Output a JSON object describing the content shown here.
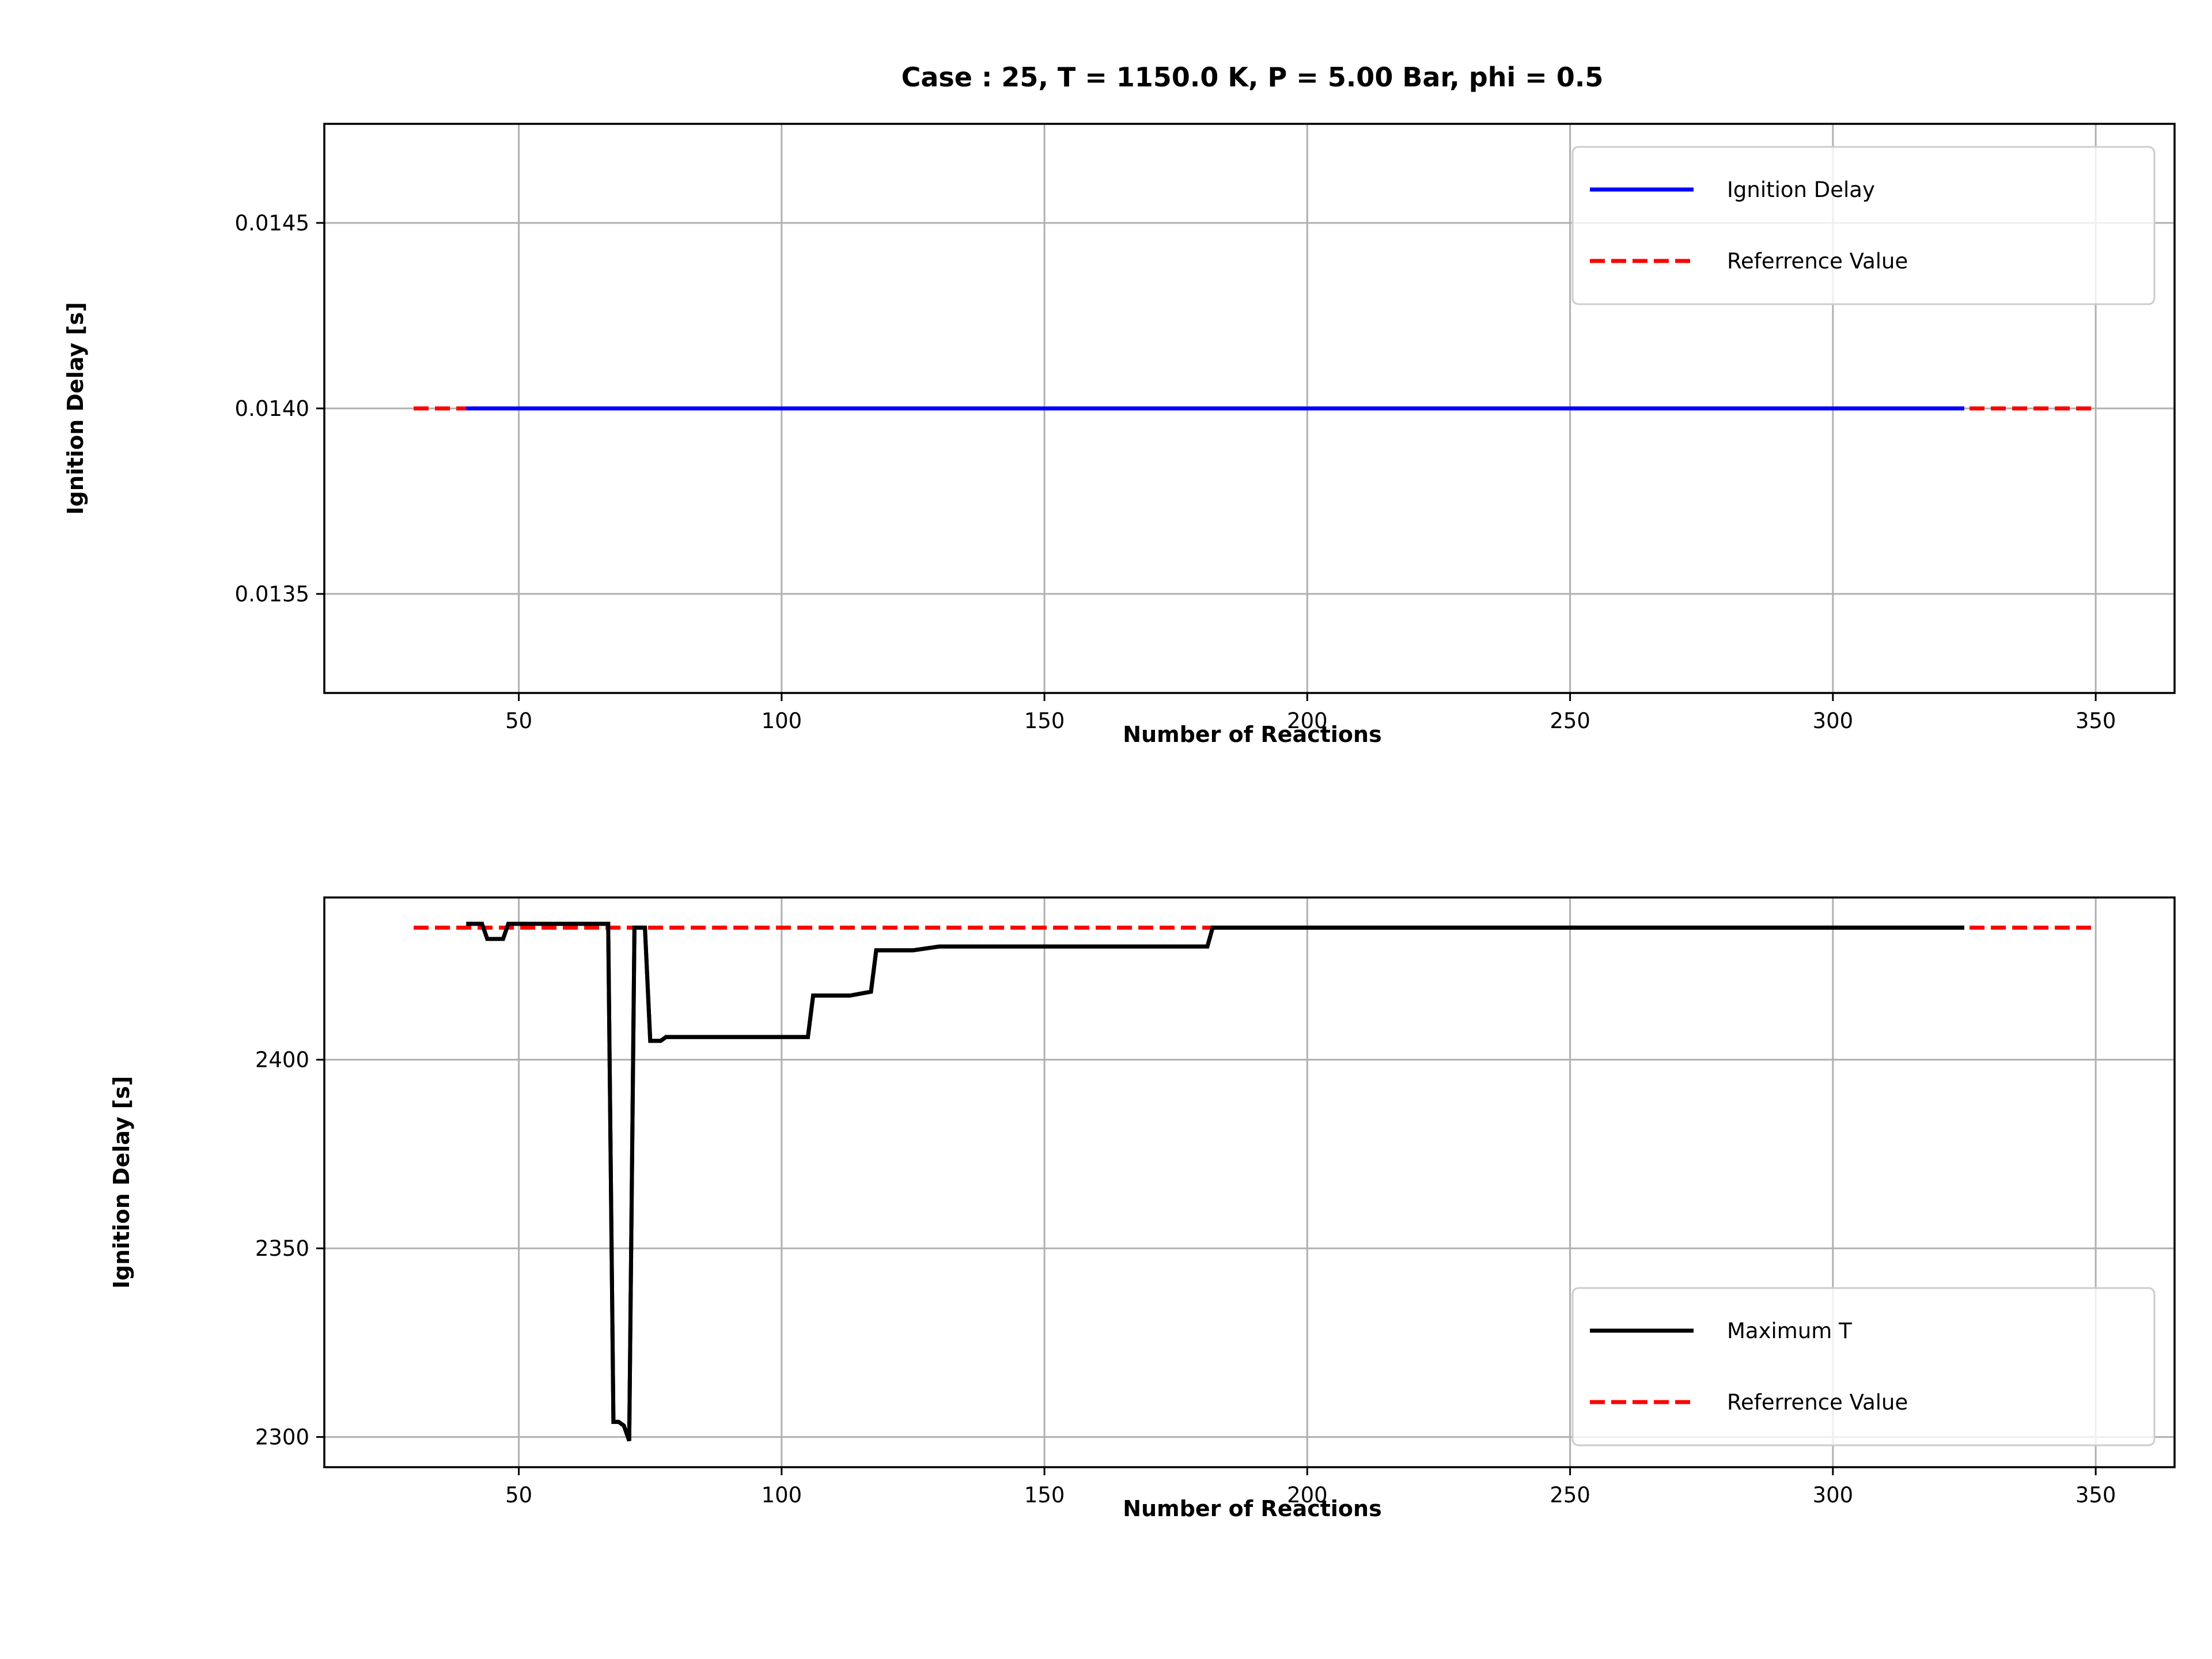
{
  "chart_data": [
    {
      "type": "line",
      "title": "Case : 25, T = 1150.0 K, P = 5.00 Bar, phi = 0.5",
      "xlabel": "Number of Reactions",
      "ylabel": "Ignition Delay [s]",
      "xlim": [
        13,
        365
      ],
      "ylim": [
        0.013233,
        0.014767
      ],
      "xticks": [
        50,
        100,
        150,
        200,
        250,
        300,
        350
      ],
      "yticks": [
        0.0135,
        0.014,
        0.0145
      ],
      "ytick_labels": [
        "0.0135",
        "0.0140",
        "0.0145"
      ],
      "grid": true,
      "legend_position": "upper right",
      "series": [
        {
          "name": "Ignition Delay",
          "color": "#0000ff",
          "style": "solid",
          "x": [
            40,
            325
          ],
          "y": [
            0.014,
            0.014
          ]
        },
        {
          "name": "Referrence Value",
          "color": "#ff0000",
          "style": "dashed",
          "x": [
            30,
            350
          ],
          "y": [
            0.014,
            0.014
          ]
        }
      ]
    },
    {
      "type": "line",
      "title": "",
      "xlabel": "Number of Reactions",
      "ylabel": "Ignition Delay [s]",
      "xlim": [
        13,
        365
      ],
      "ylim": [
        2292,
        2443
      ],
      "xticks": [
        50,
        100,
        150,
        200,
        250,
        300,
        350
      ],
      "yticks": [
        2300,
        2350,
        2400
      ],
      "ytick_labels": [
        "2300",
        "2350",
        "2400"
      ],
      "grid": true,
      "legend_position": "lower right",
      "series": [
        {
          "name": "Maximum T",
          "color": "#000000",
          "style": "solid",
          "x": [
            40,
            43,
            44,
            47,
            48,
            50,
            60,
            67,
            68,
            69,
            70,
            71,
            72,
            73,
            74,
            75,
            76,
            77,
            78,
            80,
            90,
            100,
            105,
            106,
            110,
            113,
            117,
            118,
            125,
            130,
            150,
            170,
            181,
            182,
            190,
            200,
            250,
            300,
            325
          ],
          "y": [
            2436,
            2436,
            2432,
            2432,
            2436,
            2436,
            2436,
            2436,
            2304,
            2304,
            2303,
            2299,
            2435,
            2435,
            2435,
            2405,
            2405,
            2405,
            2406,
            2406,
            2406,
            2406,
            2406,
            2417,
            2417,
            2417,
            2418,
            2429,
            2429,
            2430,
            2430,
            2430,
            2430,
            2435,
            2435,
            2435,
            2435,
            2435,
            2435
          ]
        },
        {
          "name": "Referrence Value",
          "color": "#ff0000",
          "style": "dashed",
          "x": [
            30,
            350
          ],
          "y": [
            2435,
            2435
          ]
        }
      ]
    }
  ]
}
